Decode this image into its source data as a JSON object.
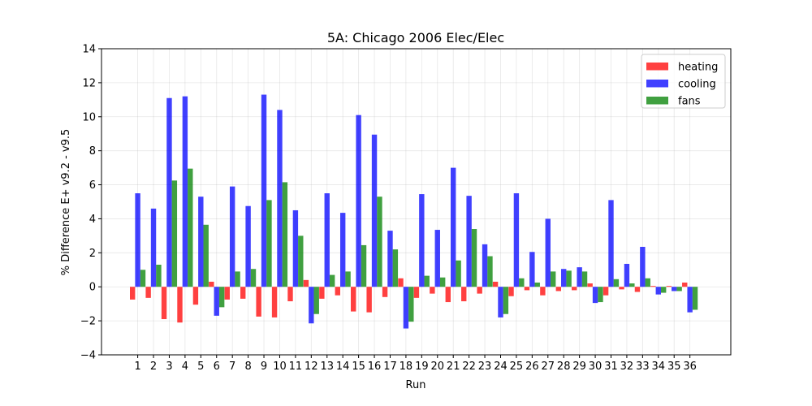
{
  "chart_data": {
    "type": "bar",
    "title": "5A: Chicago 2006 Elec/Elec",
    "xlabel": "Run",
    "ylabel": "% Difference E+ v9.2 - v9.5",
    "ylim": [
      -4,
      14
    ],
    "yticks": [
      -4,
      -2,
      0,
      2,
      4,
      6,
      8,
      10,
      12,
      14
    ],
    "grid": true,
    "legend_position": "top-right",
    "categories": [
      "1",
      "2",
      "3",
      "4",
      "5",
      "6",
      "7",
      "8",
      "9",
      "10",
      "11",
      "12",
      "13",
      "14",
      "15",
      "16",
      "17",
      "18",
      "19",
      "20",
      "21",
      "22",
      "23",
      "24",
      "25",
      "26",
      "27",
      "28",
      "29",
      "30",
      "31",
      "32",
      "33",
      "34",
      "35",
      "36"
    ],
    "series": [
      {
        "name": "heating",
        "color": "#ff0000",
        "values": [
          -0.75,
          -0.65,
          -1.9,
          -2.1,
          -1.05,
          0.3,
          -0.75,
          -0.7,
          -1.75,
          -1.8,
          -0.85,
          0.4,
          -0.7,
          -0.5,
          -1.45,
          -1.5,
          -0.6,
          0.5,
          -0.65,
          -0.4,
          -0.9,
          -0.85,
          -0.4,
          0.3,
          -0.55,
          -0.2,
          -0.5,
          -0.25,
          -0.2,
          0.2,
          -0.5,
          -0.15,
          -0.3,
          0.05,
          0.05,
          0.25
        ]
      },
      {
        "name": "cooling",
        "color": "#0000ff",
        "values": [
          5.5,
          4.6,
          11.1,
          11.2,
          5.3,
          -1.7,
          5.9,
          4.75,
          11.3,
          10.4,
          4.5,
          -2.15,
          5.5,
          4.35,
          10.1,
          8.95,
          3.3,
          -2.45,
          5.45,
          3.35,
          7.0,
          5.35,
          2.5,
          -1.8,
          5.5,
          2.05,
          4.0,
          1.05,
          1.15,
          -0.95,
          5.1,
          1.35,
          2.35,
          -0.45,
          -0.25,
          -1.5
        ]
      },
      {
        "name": "fans",
        "color": "#008000",
        "values": [
          1.0,
          1.3,
          6.25,
          6.95,
          3.65,
          -1.2,
          0.9,
          1.05,
          5.1,
          6.15,
          3.0,
          -1.6,
          0.7,
          0.9,
          2.45,
          5.3,
          2.2,
          -2.05,
          0.65,
          0.55,
          1.55,
          3.4,
          1.8,
          -1.6,
          0.5,
          0.25,
          0.9,
          0.95,
          0.9,
          -0.9,
          0.45,
          0.2,
          0.5,
          -0.35,
          -0.25,
          -1.35
        ]
      }
    ]
  }
}
